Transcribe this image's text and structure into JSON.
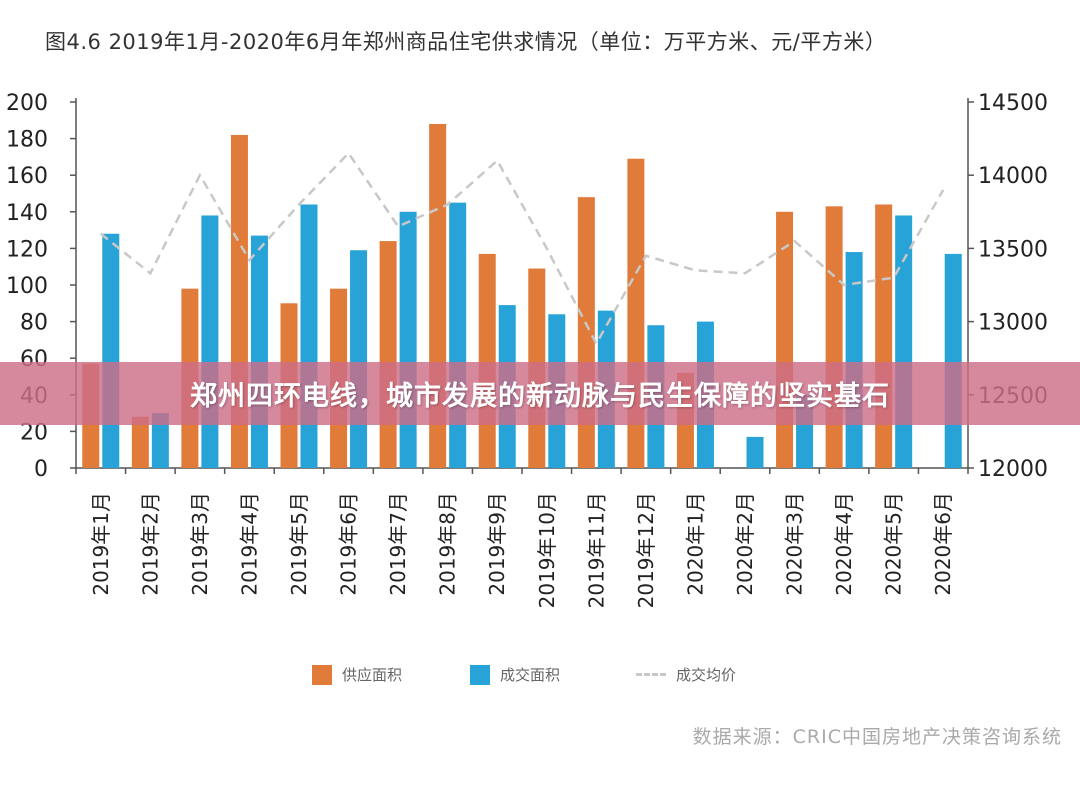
{
  "title": "图4.6 2019年1月-2020年6月年郑州商品住宅供求情况（单位：万平方米、元/平方米）",
  "banner": "郑州四环电线，城市发展的新动脉与民生保障的坚实基石",
  "source": "数据来源：CRIC中国房地产决策咨询系统",
  "colors": {
    "supply": "#e07b39",
    "deal": "#27a3d8",
    "price": "#c8c8c8",
    "banner": "#cd6e87"
  },
  "chart_data": {
    "type": "bar",
    "categories": [
      "2019年1月",
      "2019年2月",
      "2019年3月",
      "2019年4月",
      "2019年5月",
      "2019年6月",
      "2019年7月",
      "2019年8月",
      "2019年9月",
      "2019年10月",
      "2019年11月",
      "2019年12月",
      "2020年1月",
      "2020年2月",
      "2020年3月",
      "2020年4月",
      "2020年5月",
      "2020年6月"
    ],
    "series": [
      {
        "name": "供应面积",
        "type": "bar",
        "axis": "left",
        "values": [
          57,
          28,
          98,
          182,
          90,
          98,
          124,
          188,
          117,
          109,
          148,
          169,
          52,
          0,
          140,
          143,
          144,
          0
        ]
      },
      {
        "name": "成交面积",
        "type": "bar",
        "axis": "left",
        "values": [
          128,
          30,
          138,
          127,
          144,
          119,
          140,
          145,
          89,
          84,
          86,
          78,
          80,
          17,
          40,
          118,
          138,
          117
        ]
      },
      {
        "name": "成交均价",
        "type": "line",
        "axis": "right",
        "style": "dashed",
        "values": [
          13600,
          13330,
          14000,
          13420,
          13800,
          14150,
          13650,
          13800,
          14100,
          13500,
          12850,
          13450,
          13350,
          13330,
          13550,
          13250,
          13300,
          13900
        ]
      }
    ],
    "ylim_left": [
      0,
      200
    ],
    "ylim_right": [
      12000,
      14500
    ],
    "yticks_left": [
      "0",
      "20",
      "40",
      "60",
      "80",
      "100",
      "120",
      "140",
      "160",
      "180",
      "200"
    ],
    "yticks_right": [
      "12000",
      "12500",
      "13000",
      "13500",
      "14000",
      "14500"
    ],
    "legend_position": "bottom",
    "grid": false
  }
}
